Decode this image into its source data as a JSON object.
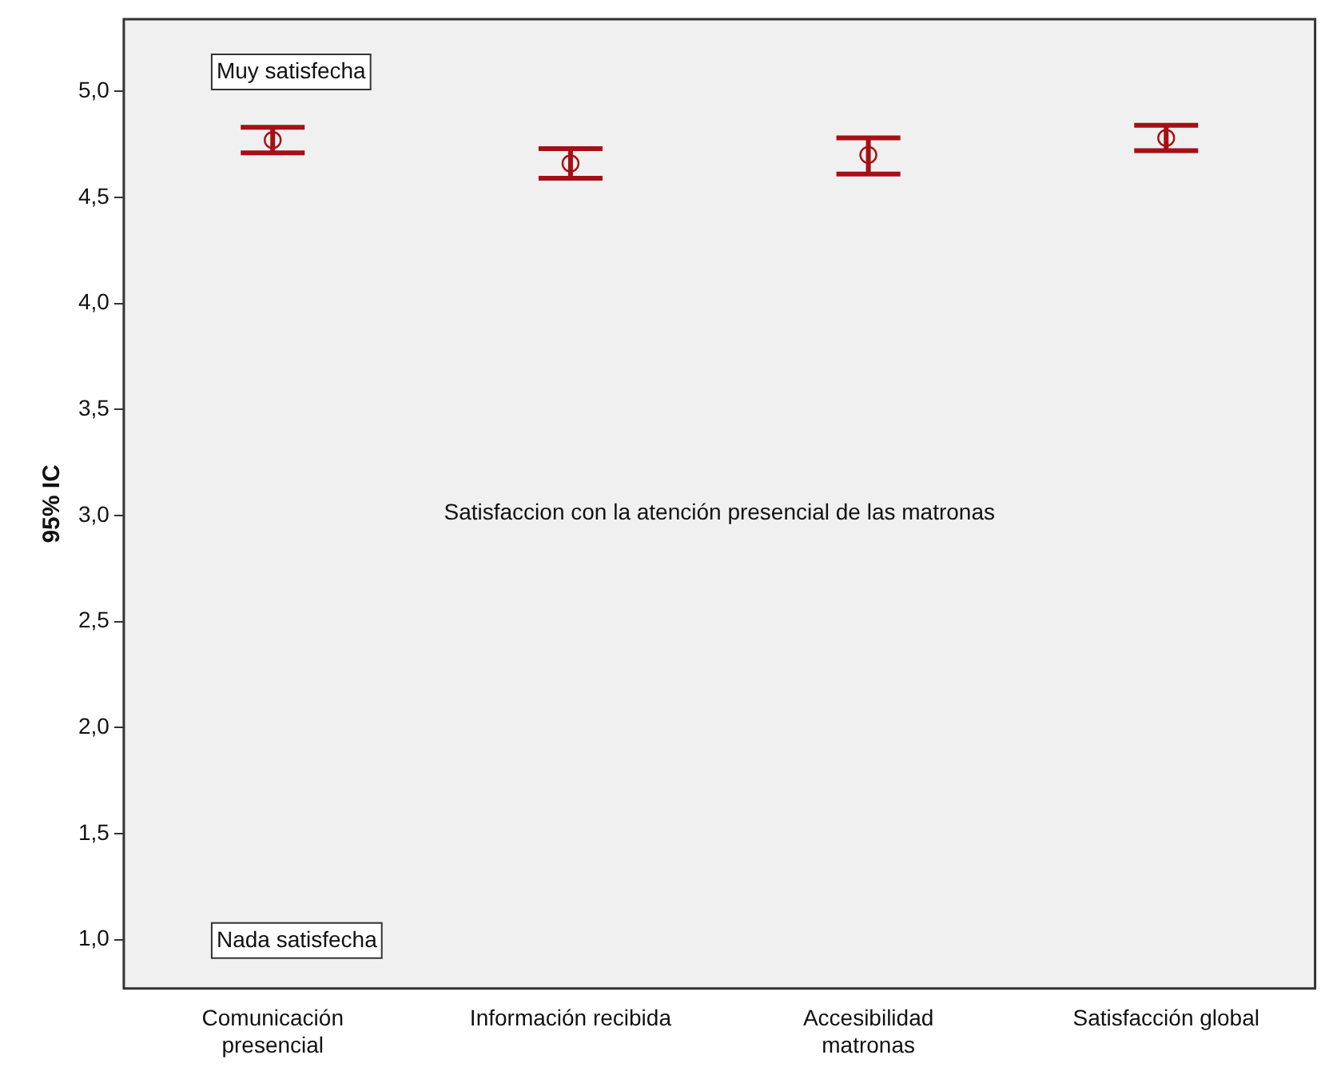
{
  "chart_data": {
    "type": "scatter",
    "ylabel": "95% IC",
    "categories": [
      "Comunicación\npresencial",
      "Información recibida",
      "Accesibilidad\nmatronas",
      "Satisfacción global"
    ],
    "series": [
      {
        "color": "#a50f15",
        "values": [
          4.77,
          4.66,
          4.7,
          4.78
        ],
        "errors": [
          [
            4.71,
            4.83
          ],
          [
            4.59,
            4.73
          ],
          [
            4.61,
            4.78
          ],
          [
            4.72,
            4.84
          ]
        ]
      }
    ],
    "marker": "circle",
    "grid": false,
    "legend": false,
    "ylim": [
      0.77,
      5.34
    ],
    "yticks": [
      {
        "value": 1,
        "label": "1,0"
      },
      {
        "value": 1.5,
        "label": "1,5"
      },
      {
        "value": 2,
        "label": "2,0"
      },
      {
        "value": 2.5,
        "label": "2,5"
      },
      {
        "value": 3,
        "label": "3,0"
      },
      {
        "value": 3.5,
        "label": "3,5"
      },
      {
        "value": 4,
        "label": "4,0"
      },
      {
        "value": 4.5,
        "label": "4,5"
      },
      {
        "value": 5,
        "label": "5,0"
      }
    ],
    "annotations": [
      "Muy satisfecha",
      "Nada satisfecha",
      "Satisfaccion con la atención presencial de las matronas"
    ]
  }
}
